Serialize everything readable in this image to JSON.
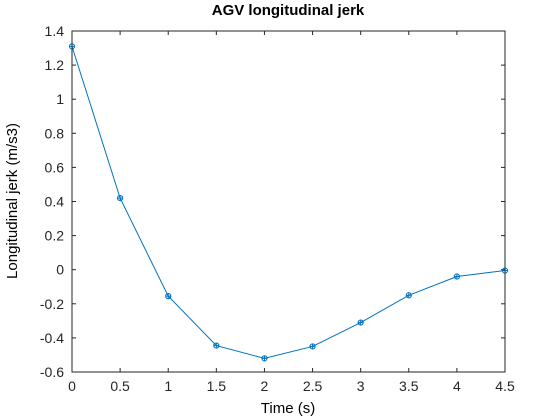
{
  "chart_data": {
    "type": "line",
    "title": "AGV longitudinal jerk",
    "xlabel": "Time (s)",
    "ylabel": "Longitudinal jerk (m/s3)",
    "xlim": [
      0,
      4.5
    ],
    "ylim": [
      -0.6,
      1.4
    ],
    "x_ticks": [
      0,
      0.5,
      1,
      1.5,
      2,
      2.5,
      3,
      3.5,
      4,
      4.5
    ],
    "x_tick_labels": [
      "0",
      "0.5",
      "1",
      "1.5",
      "2",
      "2.5",
      "3",
      "3.5",
      "4",
      "4.5"
    ],
    "y_ticks": [
      -0.6,
      -0.4,
      -0.2,
      0,
      0.2,
      0.4,
      0.6,
      0.8,
      1,
      1.2,
      1.4
    ],
    "y_tick_labels": [
      "-0.6",
      "-0.4",
      "-0.2",
      "0",
      "0.2",
      "0.4",
      "0.6",
      "0.8",
      "1",
      "1.2",
      "1.4"
    ],
    "grid": false,
    "box": true,
    "series": [
      {
        "color": "#0072bd",
        "marker": "circle-with-cross",
        "x": [
          0,
          0.5,
          1,
          1.5,
          2,
          2.5,
          3,
          3.5,
          4,
          4.5
        ],
        "y": [
          1.31,
          0.42,
          -0.155,
          -0.445,
          -0.52,
          -0.45,
          -0.31,
          -0.15,
          -0.04,
          -0.005
        ]
      }
    ]
  }
}
